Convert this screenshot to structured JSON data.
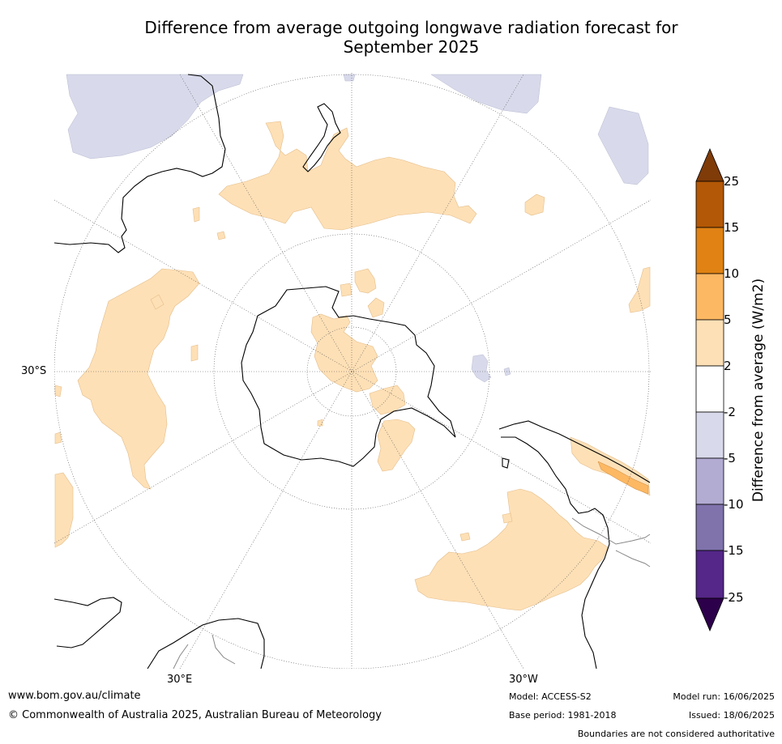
{
  "title_line1": "Difference from average outgoing longwave radiation forecast for",
  "title_line2": "September 2025",
  "map": {
    "projection": "south-polar-stereographic",
    "lat_label": "30°S",
    "lon_labels": [
      "30°E",
      "30°W"
    ]
  },
  "colorbar": {
    "label": "Difference from average (W/m2)",
    "ticks": [
      "25",
      "15",
      "10",
      "5",
      "2",
      "-2",
      "-5",
      "-10",
      "-15",
      "-25"
    ],
    "colors": {
      "over": "#7f3b08",
      "15_25": "#b35806",
      "10_15": "#e08214",
      "5_10": "#fdb863",
      "2_5": "#fee0b6",
      "m2_2": "#ffffff",
      "m5_m2": "#d8daeb",
      "m10_m5": "#b2abd2",
      "m15_m10": "#8073ac",
      "m25_m15": "#542788",
      "under": "#2d004b"
    }
  },
  "footer": {
    "website": "www.bom.gov.au/climate",
    "copyright": "© Commonwealth of Australia 2025, Australian Bureau of Meteorology",
    "model": "Model: ACCESS-S2",
    "base_period": "Base period: 1981-2018",
    "model_run": "Model run: 16/06/2025",
    "issued": "Issued: 18/06/2025",
    "disclaimer": "Boundaries are not considered authoritative"
  }
}
